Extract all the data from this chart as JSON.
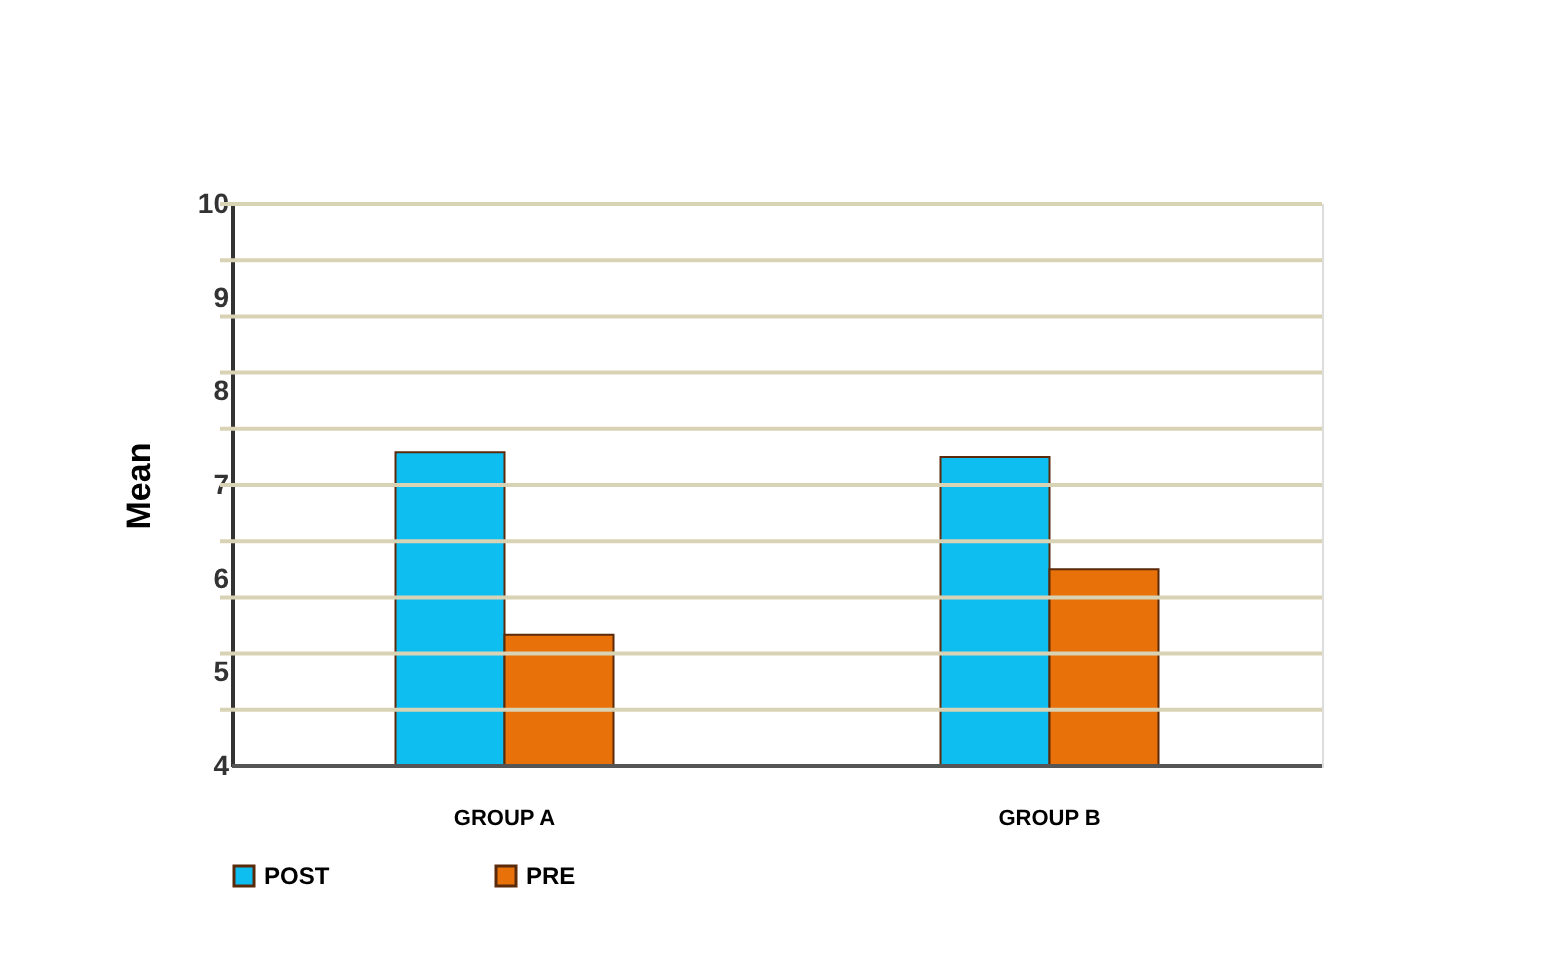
{
  "chart_data": {
    "type": "bar",
    "ylabel": "Mean",
    "categories": [
      "GROUP  A",
      "GROUP B"
    ],
    "series": [
      {
        "name": "POST",
        "color": "#0fbef0",
        "values": [
          7.35,
          7.3
        ]
      },
      {
        "name": "PRE",
        "color": "#e8710a",
        "values": [
          5.4,
          6.1
        ]
      }
    ],
    "ylim": [
      4,
      10
    ],
    "yticks": [
      4,
      5,
      6,
      7,
      8,
      9,
      10,
      {
        "value": 4.6,
        "label": null
      },
      {
        "value": 5.2,
        "label": null
      },
      {
        "value": 5.8,
        "label": null
      },
      {
        "value": 6.4,
        "label": null
      },
      {
        "value": 7,
        "label": null
      },
      {
        "value": 7.6,
        "label": null
      },
      {
        "value": 8.2,
        "label": null
      },
      {
        "value": 8.8,
        "label": null
      },
      {
        "value": 9.4,
        "label": null
      },
      {
        "value": 10,
        "label": null
      }
    ],
    "grid": "y",
    "legend": "bottom"
  }
}
